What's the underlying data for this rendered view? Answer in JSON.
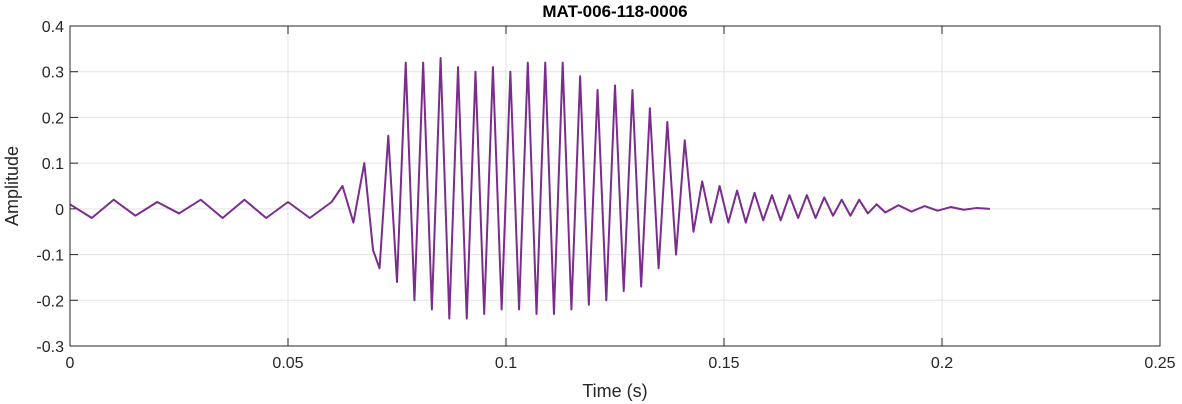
{
  "chart_data": {
    "type": "line",
    "title": "MAT-006-118-0006",
    "xlabel": "Time (s)",
    "ylabel": "Amplitude",
    "xlim": [
      0,
      0.25
    ],
    "ylim": [
      -0.3,
      0.4
    ],
    "xticks": [
      0,
      0.05,
      0.1,
      0.15,
      0.2,
      0.25
    ],
    "xtick_labels": [
      "0",
      "0.05",
      "0.1",
      "0.15",
      "0.2",
      "0.25"
    ],
    "yticks": [
      -0.3,
      -0.2,
      -0.1,
      0,
      0.1,
      0.2,
      0.3,
      0.4
    ],
    "ytick_labels": [
      "-0.3",
      "-0.2",
      "-0.1",
      "0",
      "0.1",
      "0.2",
      "0.3",
      "0.4"
    ],
    "grid": true,
    "series": [
      {
        "color": "#7b2d8e",
        "x": [
          0,
          0.005,
          0.01,
          0.015,
          0.02,
          0.025,
          0.03,
          0.035,
          0.04,
          0.045,
          0.05,
          0.055,
          0.06,
          0.0625,
          0.065,
          0.0675,
          0.0695,
          0.071,
          0.073,
          0.075,
          0.077,
          0.079,
          0.081,
          0.083,
          0.085,
          0.087,
          0.089,
          0.091,
          0.093,
          0.095,
          0.097,
          0.099,
          0.101,
          0.103,
          0.105,
          0.107,
          0.109,
          0.111,
          0.113,
          0.115,
          0.117,
          0.119,
          0.121,
          0.123,
          0.125,
          0.127,
          0.129,
          0.131,
          0.133,
          0.135,
          0.137,
          0.139,
          0.141,
          0.143,
          0.145,
          0.147,
          0.149,
          0.151,
          0.153,
          0.155,
          0.157,
          0.159,
          0.161,
          0.163,
          0.165,
          0.167,
          0.169,
          0.171,
          0.173,
          0.175,
          0.177,
          0.179,
          0.181,
          0.183,
          0.185,
          0.187,
          0.19,
          0.193,
          0.196,
          0.199,
          0.202,
          0.205,
          0.208,
          0.211
        ],
        "y": [
          0.01,
          -0.02,
          0.02,
          -0.015,
          0.015,
          -0.01,
          0.02,
          -0.02,
          0.02,
          -0.02,
          0.015,
          -0.02,
          0.015,
          0.05,
          -0.03,
          0.1,
          -0.09,
          -0.13,
          0.16,
          -0.16,
          0.32,
          -0.2,
          0.32,
          -0.22,
          0.33,
          -0.24,
          0.31,
          -0.24,
          0.3,
          -0.23,
          0.31,
          -0.22,
          0.3,
          -0.22,
          0.32,
          -0.23,
          0.32,
          -0.23,
          0.32,
          -0.22,
          0.29,
          -0.21,
          0.26,
          -0.2,
          0.27,
          -0.18,
          0.26,
          -0.17,
          0.22,
          -0.13,
          0.19,
          -0.1,
          0.15,
          -0.05,
          0.06,
          -0.03,
          0.05,
          -0.03,
          0.04,
          -0.03,
          0.035,
          -0.025,
          0.03,
          -0.025,
          0.03,
          -0.02,
          0.03,
          -0.02,
          0.025,
          -0.015,
          0.02,
          -0.015,
          0.02,
          -0.01,
          0.01,
          -0.008,
          0.008,
          -0.006,
          0.006,
          -0.004,
          0.004,
          -0.002,
          0.002,
          0
        ]
      }
    ]
  }
}
